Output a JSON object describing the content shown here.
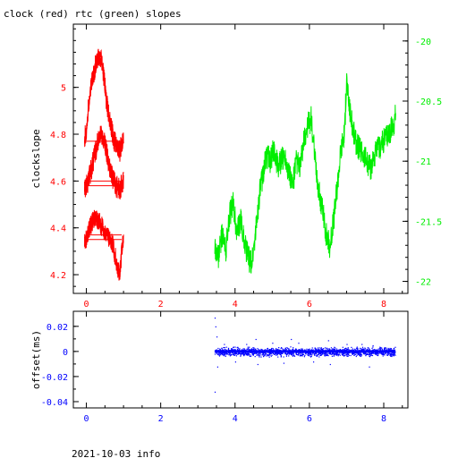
{
  "page": {
    "title": "clock (red) rtc (green) slopes",
    "footer": "2021-10-03 info"
  },
  "colors": {
    "clock": "#ff0000",
    "rtc": "#00ee00",
    "offset": "#0000ff",
    "frame": "#000000"
  },
  "chart_data": [
    {
      "type": "line",
      "title": "clock (red) rtc (green) slopes",
      "xlabel": "",
      "ylabel": "clockslope",
      "y2label": "",
      "xlim": [
        -0.35,
        8.65
      ],
      "ylim": [
        4.12,
        5.27
      ],
      "y2lim": [
        -22.1,
        -19.86
      ],
      "xticks": [
        0,
        2,
        4,
        6,
        8
      ],
      "yticks": [
        4.2,
        4.4,
        4.6,
        4.8,
        5.0
      ],
      "ytick_labels": [
        "4.2",
        "4.4",
        "4.6",
        "4.8",
        "5"
      ],
      "y2ticks": [
        -22,
        -21.5,
        -21,
        -20.5,
        -20
      ],
      "y2tick_labels": [
        "-22",
        "-21.5",
        "-21",
        "-20.5",
        "-20"
      ],
      "grid": false,
      "series": [
        {
          "name": "clock",
          "axis": "left",
          "x": [
            -0.05,
            0.0,
            0.05,
            0.1,
            0.15,
            0.2,
            0.25,
            0.3,
            0.35,
            0.4,
            0.45,
            0.5,
            0.55,
            0.6,
            0.65,
            0.7,
            0.75,
            0.8,
            0.85,
            0.9,
            0.95,
            1.0
          ],
          "y": [
            4.78,
            4.82,
            4.9,
            4.97,
            5.03,
            5.06,
            5.1,
            5.12,
            5.13,
            5.12,
            5.08,
            5.0,
            4.93,
            4.88,
            4.84,
            4.8,
            4.77,
            4.75,
            4.74,
            4.73,
            4.76,
            4.78
          ],
          "y_low": [
            4.56,
            4.58,
            4.6,
            4.63,
            4.66,
            4.7,
            4.73,
            4.76,
            4.78,
            4.8,
            4.78,
            4.76,
            4.72,
            4.68,
            4.64,
            4.62,
            4.6,
            4.58,
            4.57,
            4.57,
            4.58,
            4.6
          ],
          "y_bottom": [
            4.33,
            4.35,
            4.38,
            4.4,
            4.42,
            4.43,
            4.44,
            4.43,
            4.42,
            4.41,
            4.4,
            4.38,
            4.37,
            4.36,
            4.35,
            4.33,
            4.3,
            4.26,
            4.22,
            4.2,
            4.3,
            4.36
          ]
        },
        {
          "name": "rtc",
          "axis": "right",
          "x": [
            3.45,
            3.55,
            3.65,
            3.75,
            3.85,
            3.95,
            4.05,
            4.15,
            4.25,
            4.35,
            4.45,
            4.55,
            4.65,
            4.75,
            4.85,
            4.95,
            5.05,
            5.15,
            5.25,
            5.35,
            5.45,
            5.55,
            5.65,
            5.75,
            5.85,
            5.95,
            6.05,
            6.15,
            6.25,
            6.35,
            6.45,
            6.55,
            6.65,
            6.75,
            6.85,
            6.95,
            7.0,
            7.05,
            7.15,
            7.25,
            7.35,
            7.45,
            7.55,
            7.65,
            7.75,
            7.85,
            7.95,
            8.05,
            8.15,
            8.25,
            8.32
          ],
          "y": [
            -21.7,
            -21.8,
            -21.6,
            -21.75,
            -21.45,
            -21.35,
            -21.6,
            -21.5,
            -21.65,
            -21.8,
            -21.85,
            -21.6,
            -21.3,
            -21.1,
            -20.95,
            -21.0,
            -20.9,
            -21.05,
            -21.0,
            -20.95,
            -21.1,
            -21.2,
            -21.0,
            -21.05,
            -20.85,
            -20.7,
            -20.65,
            -21.0,
            -21.25,
            -21.4,
            -21.6,
            -21.7,
            -21.5,
            -21.2,
            -20.9,
            -20.75,
            -20.3,
            -20.5,
            -20.7,
            -20.85,
            -20.9,
            -20.95,
            -21.0,
            -21.05,
            -20.95,
            -20.9,
            -20.85,
            -20.8,
            -20.75,
            -20.72,
            -20.62
          ]
        }
      ]
    },
    {
      "type": "scatter",
      "xlabel": "",
      "ylabel": "offset(ms)",
      "xlim": [
        -0.35,
        8.65
      ],
      "ylim": [
        -0.045,
        0.032
      ],
      "xticks": [
        0,
        2,
        4,
        6,
        8
      ],
      "yticks": [
        -0.04,
        -0.02,
        0,
        0.02
      ],
      "ytick_labels": [
        "-0.04",
        "-0.02",
        "0",
        "0.02"
      ],
      "grid": false,
      "series": [
        {
          "name": "offset",
          "x_start": 3.45,
          "x_end": 8.3,
          "center": 0.0,
          "band_half_width": 0.003,
          "outliers": [
            [
              3.45,
              0.027
            ],
            [
              3.45,
              -0.032
            ],
            [
              3.47,
              0.02
            ],
            [
              3.5,
              0.012
            ],
            [
              3.52,
              -0.012
            ],
            [
              3.7,
              0.006
            ],
            [
              4.0,
              -0.008
            ],
            [
              4.3,
              0.006
            ],
            [
              4.55,
              0.01
            ],
            [
              4.6,
              -0.01
            ],
            [
              5.0,
              0.007
            ],
            [
              5.3,
              -0.009
            ],
            [
              5.5,
              0.01
            ],
            [
              5.7,
              0.007
            ],
            [
              6.1,
              -0.008
            ],
            [
              6.5,
              0.009
            ],
            [
              6.55,
              -0.01
            ],
            [
              7.0,
              0.006
            ],
            [
              7.4,
              0.006
            ],
            [
              7.6,
              -0.012
            ],
            [
              7.7,
              0.005
            ],
            [
              8.0,
              0.003
            ],
            [
              8.2,
              -0.003
            ]
          ]
        }
      ]
    }
  ]
}
